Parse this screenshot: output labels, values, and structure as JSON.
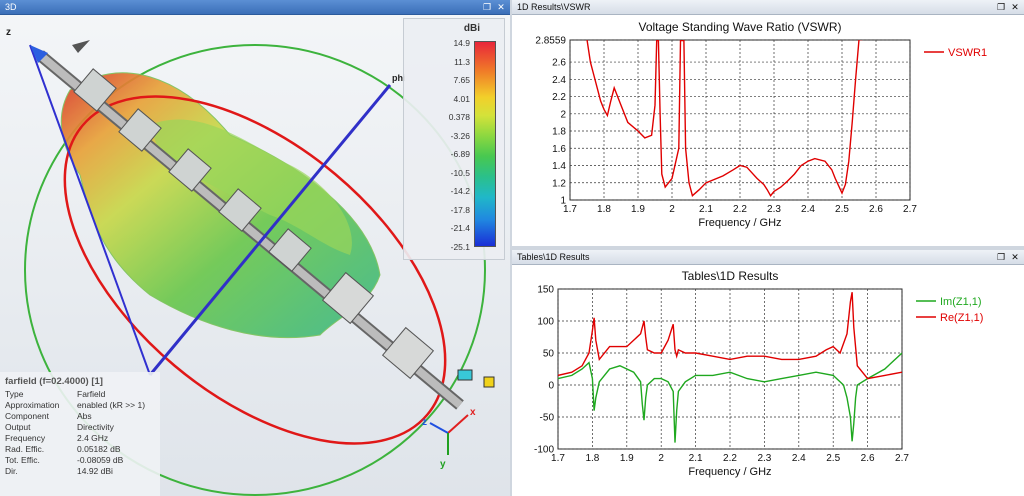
{
  "view3d": {
    "title": "3D",
    "axes": {
      "x": "x",
      "y": "y",
      "z": "z",
      "phi": "phi"
    },
    "colorbar": {
      "unit": "dBi",
      "ticks": [
        "14.9",
        "11.3",
        "7.65",
        "4.01",
        "0.378",
        "-3.26",
        "-6.89",
        "-10.5",
        "-14.2",
        "-17.8",
        "-21.4",
        "-25.1"
      ]
    },
    "info": {
      "header": "farfield (f=02.4000) [1]",
      "rows": [
        {
          "key": "Type",
          "value": "Farfield"
        },
        {
          "key": "Approximation",
          "value": "enabled (kR >> 1)"
        },
        {
          "key": "Component",
          "value": "Abs"
        },
        {
          "key": "Output",
          "value": "Directivity"
        },
        {
          "key": "Frequency",
          "value": "2.4 GHz"
        },
        {
          "key": "Rad. Effic.",
          "value": "0.05182 dB"
        },
        {
          "key": "Tot. Effic.",
          "value": "-0.08059 dB"
        },
        {
          "key": "Dir.",
          "value": "14.92 dBi"
        }
      ]
    }
  },
  "vswr_panel": {
    "title": "1D Results\\VSWR"
  },
  "tables_panel": {
    "title": "Tables\\1D Results"
  },
  "window_buttons": {
    "restore": "❐",
    "close": "✕"
  },
  "chart_data": [
    {
      "type": "line",
      "title": "Voltage Standing Wave Ratio (VSWR)",
      "xlabel": "Frequency / GHz",
      "ylabel": "",
      "xlim": [
        1.7,
        2.7
      ],
      "ylim": [
        1,
        2.8559
      ],
      "xticks": [
        "1.7",
        "1.8",
        "1.9",
        "2",
        "2.1",
        "2.2",
        "2.3",
        "2.4",
        "2.5",
        "2.6",
        "2.7"
      ],
      "yticks": [
        "1",
        "1.2",
        "1.4",
        "1.6",
        "1.8",
        "2",
        "2.2",
        "2.4",
        "2.6",
        "2.8559"
      ],
      "legend_position": "right",
      "series": [
        {
          "name": "VSWR1",
          "color": "#e00000",
          "x": [
            1.75,
            1.76,
            1.77,
            1.78,
            1.79,
            1.8,
            1.81,
            1.82,
            1.83,
            1.84,
            1.85,
            1.87,
            1.9,
            1.92,
            1.94,
            1.95,
            1.955,
            1.96,
            1.965,
            1.97,
            1.98,
            2.0,
            2.02,
            2.025,
            2.03,
            2.035,
            2.04,
            2.05,
            2.06,
            2.08,
            2.1,
            2.15,
            2.18,
            2.2,
            2.22,
            2.25,
            2.27,
            2.28,
            2.29,
            2.3,
            2.32,
            2.34,
            2.36,
            2.38,
            2.4,
            2.42,
            2.45,
            2.47,
            2.48,
            2.5,
            2.51,
            2.52,
            2.53,
            2.54,
            2.55,
            2.56
          ],
          "y": [
            2.86,
            2.6,
            2.45,
            2.3,
            2.15,
            2.05,
            1.98,
            2.15,
            2.3,
            2.2,
            2.1,
            1.9,
            1.8,
            1.72,
            1.75,
            2.1,
            2.85,
            2.85,
            2.0,
            1.3,
            1.15,
            1.25,
            1.6,
            2.85,
            2.85,
            2.85,
            1.6,
            1.2,
            1.05,
            1.12,
            1.2,
            1.28,
            1.35,
            1.4,
            1.38,
            1.25,
            1.18,
            1.12,
            1.05,
            1.1,
            1.15,
            1.22,
            1.3,
            1.4,
            1.45,
            1.48,
            1.45,
            1.35,
            1.25,
            1.08,
            1.18,
            1.45,
            1.9,
            2.4,
            2.86,
            2.86
          ]
        }
      ]
    },
    {
      "type": "line",
      "title": "Tables\\1D Results",
      "xlabel": "Frequency / GHz",
      "ylabel": "",
      "xlim": [
        1.7,
        2.7
      ],
      "ylim": [
        -100,
        150
      ],
      "xticks": [
        "1.7",
        "1.8",
        "1.9",
        "2",
        "2.1",
        "2.2",
        "2.3",
        "2.4",
        "2.5",
        "2.6",
        "2.7"
      ],
      "yticks": [
        "-100",
        "-50",
        "0",
        "50",
        "100",
        "150"
      ],
      "legend_position": "right",
      "series": [
        {
          "name": "Im(Z1,1)",
          "color": "#1fa81f",
          "x": [
            1.7,
            1.74,
            1.77,
            1.79,
            1.8,
            1.805,
            1.81,
            1.82,
            1.85,
            1.88,
            1.92,
            1.94,
            1.945,
            1.95,
            1.955,
            1.96,
            1.98,
            2.0,
            2.02,
            2.035,
            2.04,
            2.045,
            2.05,
            2.07,
            2.1,
            2.15,
            2.2,
            2.25,
            2.3,
            2.35,
            2.4,
            2.45,
            2.5,
            2.53,
            2.54,
            2.55,
            2.555,
            2.56,
            2.565,
            2.57,
            2.6,
            2.65,
            2.7
          ],
          "y": [
            10,
            15,
            25,
            35,
            10,
            -40,
            -20,
            5,
            25,
            30,
            20,
            5,
            -30,
            -55,
            -20,
            0,
            10,
            10,
            5,
            -10,
            -90,
            -40,
            -10,
            5,
            15,
            15,
            20,
            10,
            5,
            10,
            15,
            20,
            15,
            0,
            -20,
            -50,
            -88,
            -60,
            -20,
            0,
            10,
            25,
            50
          ]
        },
        {
          "name": "Re(Z1,1)",
          "color": "#e00000",
          "x": [
            1.7,
            1.74,
            1.77,
            1.79,
            1.8,
            1.805,
            1.81,
            1.82,
            1.85,
            1.9,
            1.94,
            1.95,
            1.955,
            1.96,
            1.98,
            2.0,
            2.02,
            2.035,
            2.04,
            2.045,
            2.05,
            2.07,
            2.1,
            2.15,
            2.2,
            2.25,
            2.3,
            2.35,
            2.4,
            2.45,
            2.48,
            2.5,
            2.52,
            2.54,
            2.55,
            2.555,
            2.56,
            2.57,
            2.6,
            2.65,
            2.7
          ],
          "y": [
            15,
            20,
            30,
            50,
            85,
            105,
            70,
            40,
            60,
            60,
            80,
            100,
            75,
            55,
            50,
            50,
            70,
            95,
            55,
            45,
            55,
            50,
            50,
            45,
            40,
            45,
            45,
            40,
            40,
            45,
            55,
            60,
            50,
            80,
            130,
            145,
            90,
            30,
            10,
            15,
            20
          ]
        }
      ]
    }
  ]
}
